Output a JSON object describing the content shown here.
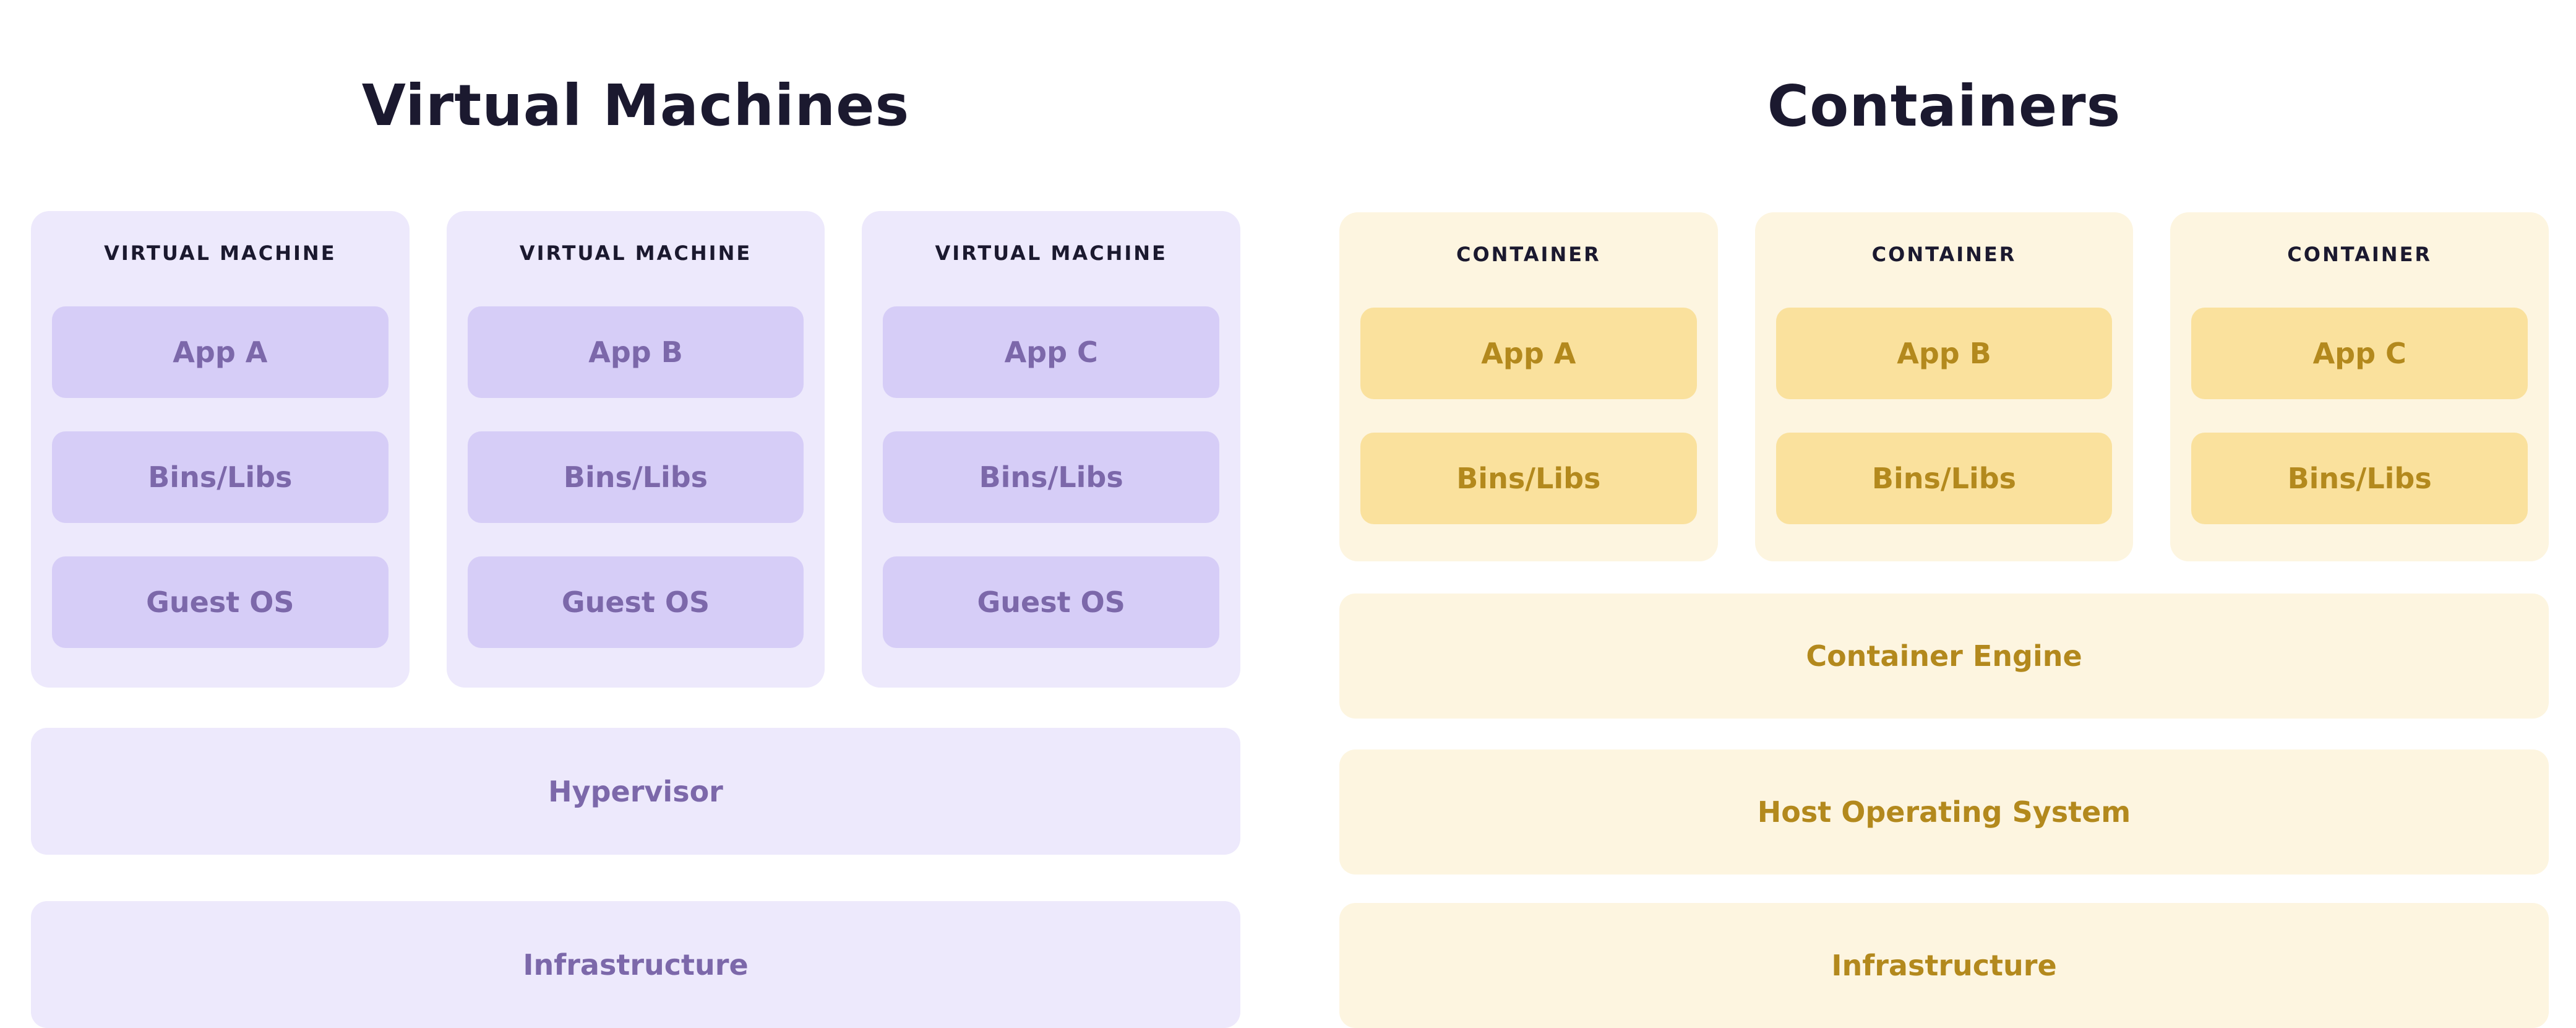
{
  "diagram": {
    "left": {
      "title": "Virtual Machines",
      "cards": [
        {
          "label": "VIRTUAL MACHINE",
          "blocks": [
            "App A",
            "Bins/Libs",
            "Guest OS"
          ]
        },
        {
          "label": "VIRTUAL MACHINE",
          "blocks": [
            "App B",
            "Bins/Libs",
            "Guest OS"
          ]
        },
        {
          "label": "VIRTUAL MACHINE",
          "blocks": [
            "App C",
            "Bins/Libs",
            "Guest OS"
          ]
        }
      ],
      "bars": [
        "Hypervisor",
        "Infrastructure"
      ]
    },
    "right": {
      "title": "Containers",
      "cards": [
        {
          "label": "CONTAINER",
          "blocks": [
            "App A",
            "Bins/Libs"
          ]
        },
        {
          "label": "CONTAINER",
          "blocks": [
            "App B",
            "Bins/Libs"
          ]
        },
        {
          "label": "CONTAINER",
          "blocks": [
            "App C",
            "Bins/Libs"
          ]
        }
      ],
      "bars": [
        "Container Engine",
        "Host Operating System",
        "Infrastructure"
      ]
    },
    "colors": {
      "heading_text": "#1b192f",
      "vm_card_bg": "#ede9fc",
      "vm_block_bg": "#d6cdf7",
      "vm_text": "#7c68aa",
      "container_card_bg": "#fdf5e0",
      "container_block_bg": "#fae19d",
      "container_text": "#b3891d",
      "page_bg": "#ffffff"
    }
  }
}
